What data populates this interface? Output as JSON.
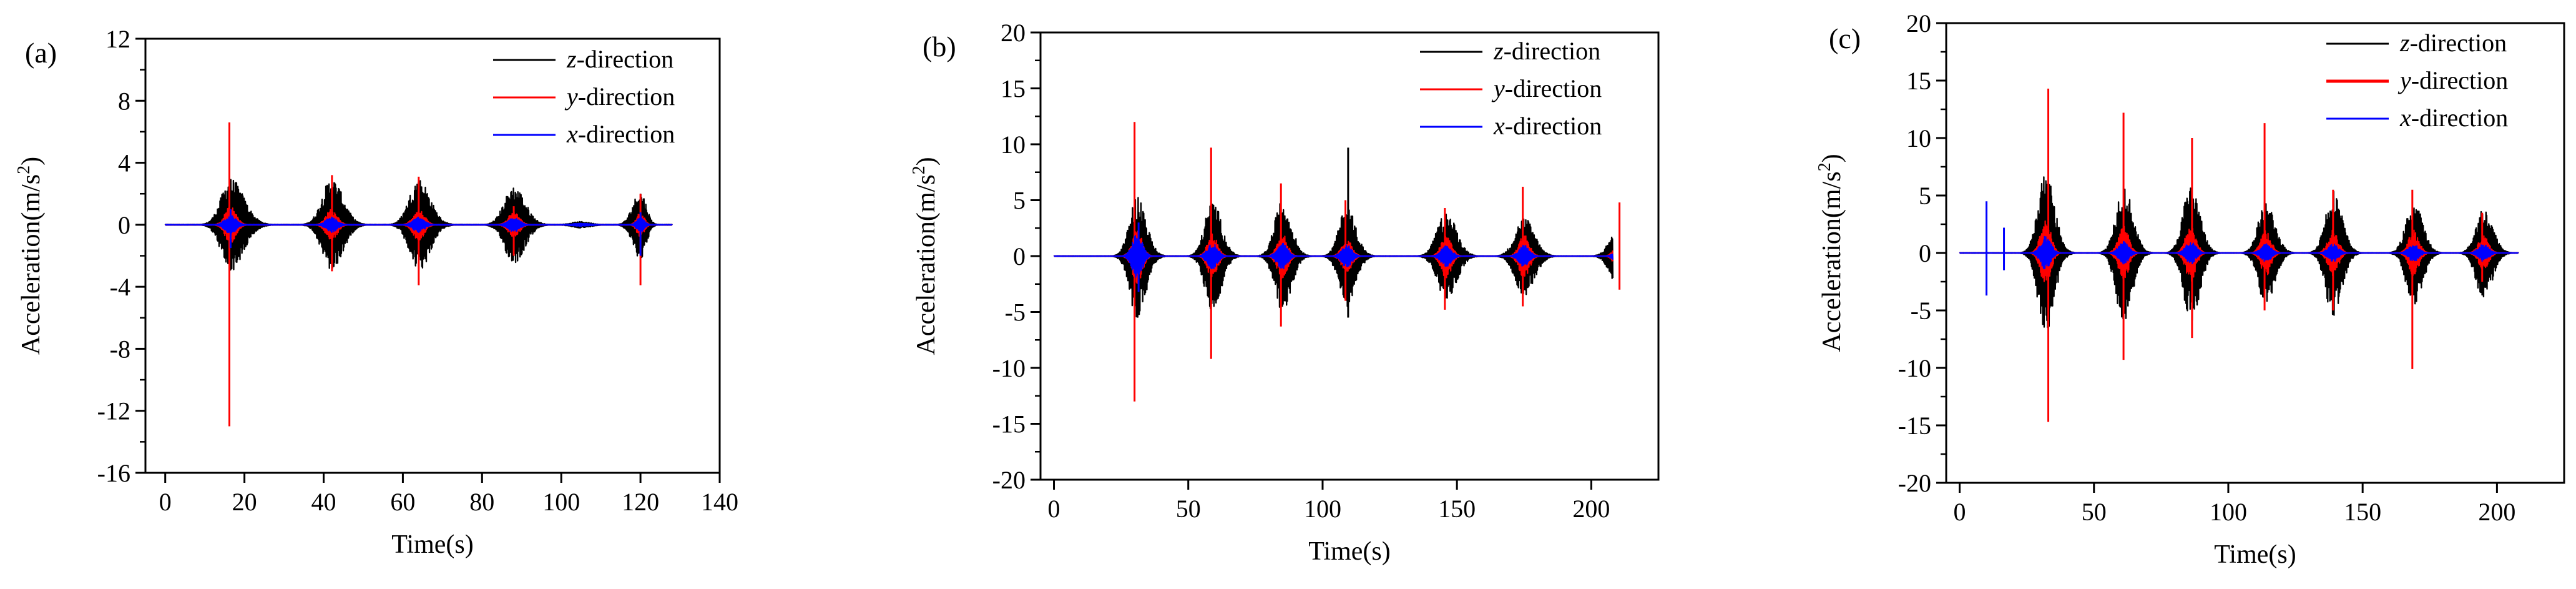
{
  "chart_data": [
    {
      "type": "line",
      "panel_label": "(a)",
      "xlabel": "Time(s)",
      "ylabel": "Acceleration(m/s²)",
      "ylabel_base": "Acceleration(m/s",
      "ylabel_sup": "2",
      "ylabel_end": ")",
      "xlim": [
        -5,
        140
      ],
      "ylim": [
        -16,
        12
      ],
      "xticks": [
        0,
        20,
        40,
        60,
        80,
        100,
        120,
        140
      ],
      "yticks": [
        -16,
        -12,
        -8,
        -4,
        0,
        4,
        8,
        12
      ],
      "legend_position": "top-right",
      "legend": [
        {
          "italic": "z",
          "rest": "-direction",
          "color": "#000000"
        },
        {
          "italic": "y",
          "rest": "-direction",
          "color": "#ff0000"
        },
        {
          "italic": "x",
          "rest": "-direction",
          "color": "#0000ff"
        }
      ],
      "series": [
        {
          "name": "z-direction",
          "color": "#000000",
          "bursts": [
            {
              "t": 16.5,
              "rise": 5,
              "decay": 7,
              "amp": 3.0
            },
            {
              "t": 42,
              "rise": 5,
              "decay": 6,
              "amp": 3.0
            },
            {
              "t": 64,
              "rise": 5,
              "decay": 6,
              "amp": 3.0
            },
            {
              "t": 88,
              "rise": 5,
              "decay": 6,
              "amp": 2.5
            },
            {
              "t": 105,
              "rise": 5,
              "decay": 5,
              "amp": 0.2
            },
            {
              "t": 120,
              "rise": 4,
              "decay": 3,
              "amp": 2.2
            }
          ]
        },
        {
          "name": "y-direction",
          "color": "#ff0000",
          "bursts": [
            {
              "t": 16.5,
              "rise": 3,
              "decay": 3,
              "amp": 1.2
            },
            {
              "t": 42,
              "rise": 3,
              "decay": 3,
              "amp": 1.0
            },
            {
              "t": 64,
              "rise": 3,
              "decay": 3,
              "amp": 1.0
            },
            {
              "t": 88,
              "rise": 3,
              "decay": 3,
              "amp": 0.8
            },
            {
              "t": 120,
              "rise": 2,
              "decay": 2,
              "amp": 0.8
            }
          ],
          "spikes": [
            {
              "t": 16.2,
              "max": 6.6,
              "min": -13.0
            },
            {
              "t": 42.1,
              "max": 3.2,
              "min": -3.0
            },
            {
              "t": 64.0,
              "max": 3.1,
              "min": -3.9
            },
            {
              "t": 88.0,
              "max": 1.2,
              "min": -2.0
            },
            {
              "t": 120.0,
              "max": 2.0,
              "min": -3.9
            }
          ]
        },
        {
          "name": "x-direction",
          "color": "#0000ff",
          "bursts": [
            {
              "t": 16.5,
              "rise": 3,
              "decay": 3,
              "amp": 0.6
            },
            {
              "t": 42,
              "rise": 3,
              "decay": 3,
              "amp": 0.5
            },
            {
              "t": 64,
              "rise": 3,
              "decay": 3,
              "amp": 0.5
            },
            {
              "t": 88,
              "rise": 3,
              "decay": 3,
              "amp": 0.5
            },
            {
              "t": 105,
              "rise": 5,
              "decay": 5,
              "amp": 0.1
            },
            {
              "t": 120,
              "rise": 2,
              "decay": 2,
              "amp": 0.5
            }
          ],
          "spikes": [
            {
              "t": 16.5,
              "max": 1.0,
              "min": -1.5
            },
            {
              "t": 120.0,
              "max": 0.8,
              "min": -2.0
            }
          ]
        }
      ]
    },
    {
      "type": "line",
      "panel_label": "(b)",
      "xlabel": "Time(s)",
      "ylabel": "Acceleration(m/s²)",
      "ylabel_base": "Acceleration(m/s",
      "ylabel_sup": "2",
      "ylabel_end": ")",
      "xlim": [
        -5,
        225
      ],
      "ylim": [
        -20,
        20
      ],
      "xticks": [
        0,
        50,
        100,
        150,
        200
      ],
      "yticks": [
        -20,
        -15,
        -10,
        -5,
        0,
        5,
        10,
        15,
        20
      ],
      "legend_position": "top-right",
      "legend": [
        {
          "italic": "z",
          "rest": "-direction",
          "color": "#000000"
        },
        {
          "italic": "y",
          "rest": "-direction",
          "color": "#ff0000"
        },
        {
          "italic": "x",
          "rest": "-direction",
          "color": "#0000ff"
        }
      ],
      "series": [
        {
          "name": "z-direction",
          "color": "#000000",
          "bursts": [
            {
              "t": 31,
              "rise": 6,
              "decay": 7,
              "amp": 5.5
            },
            {
              "t": 59,
              "rise": 6,
              "decay": 7,
              "amp": 5.0
            },
            {
              "t": 85,
              "rise": 6,
              "decay": 7,
              "amp": 5.0
            },
            {
              "t": 109,
              "rise": 6,
              "decay": 7,
              "amp": 4.5
            },
            {
              "t": 146,
              "rise": 7,
              "decay": 8,
              "amp": 4.0
            },
            {
              "t": 175,
              "rise": 7,
              "decay": 8,
              "amp": 3.5
            },
            {
              "t": 211,
              "rise": 7,
              "decay": 8,
              "amp": 3.5
            }
          ],
          "spikes": [
            {
              "t": 109.5,
              "max": 9.7,
              "min": -5.5
            }
          ]
        },
        {
          "name": "y-direction",
          "color": "#ff0000",
          "bursts": [
            {
              "t": 31,
              "rise": 4,
              "decay": 4,
              "amp": 2.5
            },
            {
              "t": 59,
              "rise": 4,
              "decay": 4,
              "amp": 2.0
            },
            {
              "t": 85,
              "rise": 4,
              "decay": 4,
              "amp": 2.0
            },
            {
              "t": 109,
              "rise": 4,
              "decay": 4,
              "amp": 1.5
            },
            {
              "t": 146,
              "rise": 4,
              "decay": 4,
              "amp": 2.0
            },
            {
              "t": 175,
              "rise": 4,
              "decay": 4,
              "amp": 2.0
            },
            {
              "t": 211,
              "rise": 4,
              "decay": 4,
              "amp": 2.0
            }
          ],
          "spikes": [
            {
              "t": 30.0,
              "max": 12.0,
              "min": -13.0
            },
            {
              "t": 58.5,
              "max": 9.7,
              "min": -9.2
            },
            {
              "t": 84.5,
              "max": 6.5,
              "min": -6.3
            },
            {
              "t": 108.5,
              "max": 5.0,
              "min": -4.0
            },
            {
              "t": 145.5,
              "max": 4.3,
              "min": -4.8
            },
            {
              "t": 174.5,
              "max": 6.2,
              "min": -4.5
            },
            {
              "t": 210.5,
              "max": 4.8,
              "min": -3.0
            }
          ]
        },
        {
          "name": "x-direction",
          "color": "#0000ff",
          "bursts": [
            {
              "t": 31,
              "rise": 4,
              "decay": 4,
              "amp": 2.0
            },
            {
              "t": 59,
              "rise": 4,
              "decay": 4,
              "amp": 1.2
            },
            {
              "t": 85,
              "rise": 4,
              "decay": 4,
              "amp": 1.2
            },
            {
              "t": 109,
              "rise": 4,
              "decay": 4,
              "amp": 1.0
            },
            {
              "t": 146,
              "rise": 4,
              "decay": 4,
              "amp": 1.0
            },
            {
              "t": 175,
              "rise": 4,
              "decay": 4,
              "amp": 1.0
            },
            {
              "t": 211,
              "rise": 4,
              "decay": 4,
              "amp": 1.2
            }
          ],
          "spikes": [
            {
              "t": 31.5,
              "max": 3.0,
              "min": -3.2
            }
          ]
        }
      ]
    },
    {
      "type": "line",
      "panel_label": "(c)",
      "xlabel": "Time(s)",
      "ylabel": "Acceleration(m/s²)",
      "ylabel_base": "Acceleration(m/s",
      "ylabel_sup": "2",
      "ylabel_end": ")",
      "xlim": [
        -5,
        225
      ],
      "ylim": [
        -20,
        20
      ],
      "xticks": [
        0,
        50,
        100,
        150,
        200
      ],
      "yticks": [
        -20,
        -15,
        -10,
        -5,
        0,
        5,
        10,
        15,
        20
      ],
      "legend_position": "top-right",
      "legend": [
        {
          "italic": "z",
          "rest": "-direction",
          "color": "#000000"
        },
        {
          "italic": "y",
          "rest": "-direction",
          "color": "#ff0000"
        },
        {
          "italic": "x",
          "rest": "-direction",
          "color": "#0000ff"
        }
      ],
      "series": [
        {
          "name": "z-direction",
          "color": "#000000",
          "bursts": [
            {
              "t": 32,
              "rise": 6,
              "decay": 7,
              "amp": 7.0
            },
            {
              "t": 61,
              "rise": 6,
              "decay": 7,
              "amp": 6.0
            },
            {
              "t": 86,
              "rise": 6,
              "decay": 7,
              "amp": 6.0
            },
            {
              "t": 114,
              "rise": 6,
              "decay": 7,
              "amp": 4.5
            },
            {
              "t": 139,
              "rise": 6,
              "decay": 7,
              "amp": 5.5
            },
            {
              "t": 169,
              "rise": 6,
              "decay": 7,
              "amp": 4.5
            },
            {
              "t": 195,
              "rise": 6,
              "decay": 7,
              "amp": 4.0
            }
          ]
        },
        {
          "name": "y-direction",
          "color": "#ff0000",
          "bursts": [
            {
              "t": 32,
              "rise": 4,
              "decay": 4,
              "amp": 3.0
            },
            {
              "t": 61,
              "rise": 4,
              "decay": 4,
              "amp": 2.5
            },
            {
              "t": 86,
              "rise": 4,
              "decay": 4,
              "amp": 2.5
            },
            {
              "t": 114,
              "rise": 4,
              "decay": 4,
              "amp": 2.0
            },
            {
              "t": 139,
              "rise": 4,
              "decay": 4,
              "amp": 2.0
            },
            {
              "t": 169,
              "rise": 4,
              "decay": 4,
              "amp": 2.0
            },
            {
              "t": 195,
              "rise": 4,
              "decay": 4,
              "amp": 1.5
            }
          ],
          "spikes": [
            {
              "t": 33.0,
              "max": 14.3,
              "min": -14.7
            },
            {
              "t": 61.0,
              "max": 12.2,
              "min": -9.3
            },
            {
              "t": 86.5,
              "max": 10.0,
              "min": -7.4
            },
            {
              "t": 113.5,
              "max": 11.3,
              "min": -5.0
            },
            {
              "t": 139.0,
              "max": 5.5,
              "min": -5.0
            },
            {
              "t": 168.5,
              "max": 5.5,
              "min": -10.1
            },
            {
              "t": 194.5,
              "max": 3.5,
              "min": -2.5
            }
          ]
        },
        {
          "name": "x-direction",
          "color": "#0000ff",
          "bursts": [
            {
              "t": 32,
              "rise": 4,
              "decay": 4,
              "amp": 1.5
            },
            {
              "t": 61,
              "rise": 4,
              "decay": 4,
              "amp": 1.0
            },
            {
              "t": 86,
              "rise": 4,
              "decay": 4,
              "amp": 1.0
            },
            {
              "t": 114,
              "rise": 4,
              "decay": 4,
              "amp": 0.8
            },
            {
              "t": 139,
              "rise": 4,
              "decay": 4,
              "amp": 0.8
            },
            {
              "t": 169,
              "rise": 4,
              "decay": 4,
              "amp": 0.8
            },
            {
              "t": 195,
              "rise": 4,
              "decay": 4,
              "amp": 0.8
            }
          ],
          "spikes": [
            {
              "t": 10.0,
              "max": 4.5,
              "min": -3.7
            },
            {
              "t": 16.5,
              "max": 2.2,
              "min": -1.5
            }
          ]
        }
      ]
    }
  ]
}
